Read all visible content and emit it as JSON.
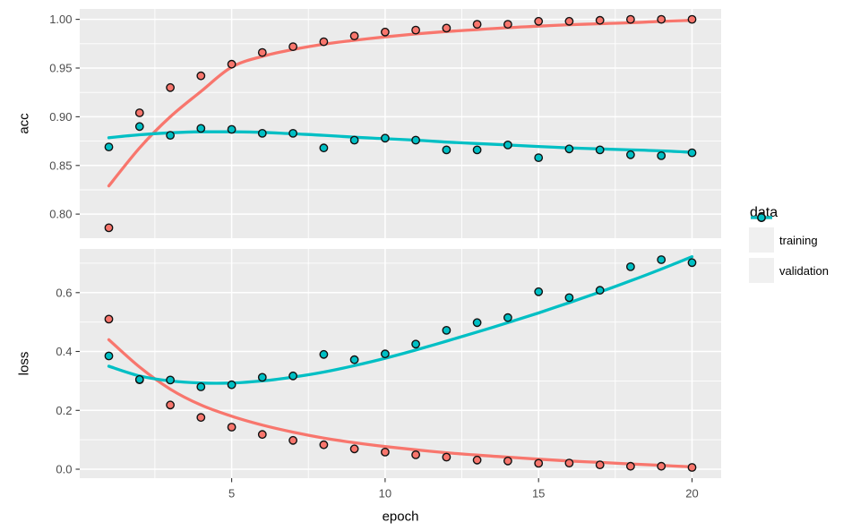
{
  "figure": {
    "background": "#FFFFFF",
    "panel_fill": "#EBEBEB",
    "grid_color": "#FFFFFF",
    "tick_mark_color": "#333333",
    "tick_label_color": "#4D4D4D",
    "point_outline": "#111111"
  },
  "axes": {
    "x_label": "epoch",
    "y_label_top": "acc",
    "y_label_bottom": "loss"
  },
  "legend": {
    "title": "data",
    "key_fill": "#F0F0F0",
    "entries": [
      {
        "label": "training",
        "color": "#F8766D"
      },
      {
        "label": "validation",
        "color": "#00BFC4"
      }
    ]
  },
  "chart_data": [
    {
      "type": "scatter",
      "panel": "acc",
      "ylabel": "acc",
      "x": [
        1,
        2,
        3,
        4,
        5,
        6,
        7,
        8,
        9,
        10,
        11,
        12,
        13,
        14,
        15,
        16,
        17,
        18,
        19,
        20
      ],
      "xlim": [
        0.05,
        20.95
      ],
      "ylim": [
        0.7753,
        1.0107
      ],
      "yticks": [
        1.0,
        0.95,
        0.9,
        0.85,
        0.8
      ],
      "ytick_labels": [
        "1.00",
        "0.95",
        "0.90",
        "0.85",
        "0.80"
      ],
      "yminor": [
        0.975,
        0.925,
        0.875,
        0.825
      ],
      "xticks": [
        5,
        10,
        15,
        20
      ],
      "xminor": [
        2.5,
        7.5,
        12.5,
        17.5
      ],
      "xtick_labels": [],
      "series": [
        {
          "name": "training",
          "color": "#F8766D",
          "points": [
            0.786,
            0.904,
            0.93,
            0.942,
            0.954,
            0.966,
            0.972,
            0.977,
            0.983,
            0.987,
            0.989,
            0.991,
            0.995,
            0.995,
            0.998,
            0.998,
            0.999,
            1.0,
            1.0,
            1.0
          ],
          "smooth": [
            0.829,
            0.868,
            0.9,
            0.926,
            0.951,
            0.962,
            0.969,
            0.9745,
            0.9785,
            0.982,
            0.985,
            0.9875,
            0.9895,
            0.9915,
            0.993,
            0.9945,
            0.9955,
            0.9965,
            0.998,
            0.999
          ]
        },
        {
          "name": "validation",
          "color": "#00BFC4",
          "points": [
            0.869,
            0.89,
            0.881,
            0.888,
            0.887,
            0.883,
            0.883,
            0.868,
            0.876,
            0.878,
            0.876,
            0.866,
            0.866,
            0.871,
            0.858,
            0.867,
            0.866,
            0.861,
            0.86,
            0.863
          ],
          "smooth": [
            0.8785,
            0.8815,
            0.8835,
            0.8845,
            0.8845,
            0.884,
            0.8825,
            0.881,
            0.879,
            0.8775,
            0.876,
            0.874,
            0.8725,
            0.871,
            0.8695,
            0.868,
            0.867,
            0.866,
            0.865,
            0.8635
          ]
        }
      ]
    },
    {
      "type": "scatter",
      "panel": "loss",
      "ylabel": "loss",
      "xlabel": "epoch",
      "x": [
        1,
        2,
        3,
        4,
        5,
        6,
        7,
        8,
        9,
        10,
        11,
        12,
        13,
        14,
        15,
        16,
        17,
        18,
        19,
        20
      ],
      "xlim": [
        0.05,
        20.95
      ],
      "ylim": [
        -0.0304,
        0.7484
      ],
      "yticks": [
        0.6,
        0.4,
        0.2,
        0.0
      ],
      "ytick_labels": [
        "0.6",
        "0.4",
        "0.2",
        "0.0"
      ],
      "yminor": [
        0.7,
        0.5,
        0.3,
        0.1
      ],
      "xticks": [
        5,
        10,
        15,
        20
      ],
      "xminor": [
        2.5,
        7.5,
        12.5,
        17.5
      ],
      "xtick_labels": [
        "5",
        "10",
        "15",
        "20"
      ],
      "series": [
        {
          "name": "training",
          "color": "#F8766D",
          "points": [
            0.51,
            0.304,
            0.218,
            0.176,
            0.143,
            0.118,
            0.098,
            0.083,
            0.069,
            0.058,
            0.049,
            0.041,
            0.031,
            0.028,
            0.02,
            0.021,
            0.015,
            0.01,
            0.01,
            0.006
          ],
          "smooth": [
            0.44,
            0.347,
            0.272,
            0.218,
            0.18,
            0.15,
            0.126,
            0.106,
            0.09,
            0.077,
            0.066,
            0.056,
            0.048,
            0.041,
            0.034,
            0.028,
            0.023,
            0.018,
            0.013,
            0.008
          ]
        },
        {
          "name": "validation",
          "color": "#00BFC4",
          "points": [
            0.385,
            0.305,
            0.303,
            0.28,
            0.287,
            0.312,
            0.317,
            0.39,
            0.372,
            0.392,
            0.425,
            0.472,
            0.498,
            0.515,
            0.603,
            0.583,
            0.608,
            0.688,
            0.712,
            0.702
          ],
          "smooth": [
            0.35,
            0.317,
            0.3,
            0.293,
            0.293,
            0.3,
            0.313,
            0.33,
            0.352,
            0.377,
            0.405,
            0.435,
            0.466,
            0.498,
            0.531,
            0.566,
            0.602,
            0.64,
            0.68,
            0.722
          ]
        }
      ]
    }
  ]
}
